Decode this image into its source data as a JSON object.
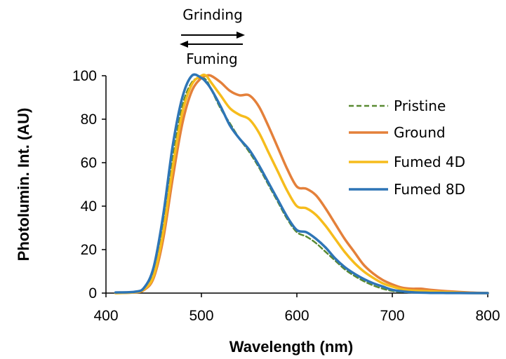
{
  "chart_data": {
    "type": "line",
    "title": "",
    "xlabel": "Wavelength  (nm)",
    "ylabel": "Photolumin. Int. (AU)",
    "xlim": [
      400,
      800
    ],
    "ylim": [
      0,
      100
    ],
    "x_ticks": [
      "400",
      "500",
      "600",
      "700",
      "800"
    ],
    "y_ticks": [
      "0",
      "20",
      "40",
      "60",
      "80",
      "100"
    ],
    "grid": false,
    "legend_position": "right",
    "annotations": {
      "top": "Grinding",
      "top_arrow": "right",
      "bottom": "Fuming",
      "bottom_arrow": "left"
    },
    "series": [
      {
        "name": "Pristine",
        "color": "#5a8a32",
        "dash": "dashed",
        "x": [
          410,
          430,
          440,
          450,
          460,
          470,
          480,
          490,
          500,
          505,
          510,
          520,
          530,
          540,
          550,
          560,
          570,
          580,
          590,
          600,
          610,
          620,
          630,
          640,
          650,
          660,
          670,
          680,
          690,
          700,
          710,
          720,
          730,
          740,
          760,
          780,
          800
        ],
        "y": [
          0,
          0.5,
          2,
          10,
          32,
          62,
          86,
          97,
          99,
          98,
          94,
          85,
          78,
          71,
          65,
          58,
          50,
          42,
          34,
          28,
          26,
          23,
          19,
          15,
          11,
          8,
          5.5,
          3.5,
          2,
          1,
          0.5,
          0.3,
          0.2,
          0.1,
          0.05,
          0,
          0
        ]
      },
      {
        "name": "Ground",
        "color": "#e4803a",
        "dash": "solid",
        "x": [
          410,
          430,
          440,
          450,
          460,
          470,
          480,
          490,
          500,
          505,
          510,
          520,
          530,
          540,
          550,
          560,
          570,
          580,
          590,
          600,
          610,
          620,
          630,
          640,
          650,
          660,
          670,
          680,
          690,
          700,
          710,
          720,
          730,
          740,
          760,
          780,
          800
        ],
        "y": [
          0,
          0.3,
          1.5,
          7,
          25,
          53,
          78,
          93,
          99,
          100,
          100,
          97,
          93,
          91,
          91,
          86,
          77,
          67,
          57,
          49,
          48,
          45,
          39,
          32,
          25,
          19,
          13,
          9,
          6,
          4,
          2.5,
          2,
          2,
          1.5,
          0.8,
          0.3,
          0
        ]
      },
      {
        "name": "Fumed 4D",
        "color": "#f6bc1c",
        "dash": "solid",
        "x": [
          410,
          430,
          440,
          450,
          460,
          470,
          480,
          490,
          500,
          505,
          510,
          520,
          530,
          540,
          550,
          560,
          570,
          580,
          590,
          600,
          610,
          620,
          630,
          640,
          650,
          660,
          670,
          680,
          690,
          700,
          710,
          720,
          730,
          740,
          760,
          780,
          800
        ],
        "y": [
          0,
          0.4,
          1.8,
          8,
          28,
          58,
          83,
          96,
          100,
          100,
          97,
          91,
          85,
          82,
          80,
          74,
          65,
          56,
          47,
          40,
          39,
          36,
          31,
          25,
          19,
          14,
          10,
          7,
          4.5,
          3,
          1.8,
          1.2,
          1,
          0.8,
          0.4,
          0.1,
          0
        ]
      },
      {
        "name": "Fumed 8D",
        "color": "#2e75b6",
        "dash": "solid",
        "x": [
          410,
          430,
          440,
          450,
          460,
          470,
          480,
          490,
          500,
          505,
          510,
          520,
          530,
          540,
          550,
          560,
          570,
          580,
          590,
          600,
          610,
          620,
          630,
          640,
          650,
          660,
          670,
          680,
          690,
          700,
          710,
          720,
          730,
          740,
          760,
          780,
          800
        ],
        "y": [
          0.3,
          0.6,
          2.5,
          12,
          36,
          68,
          90,
          100,
          99,
          97,
          94,
          86,
          77,
          71,
          66,
          59,
          51,
          43,
          35,
          29,
          28,
          25,
          21,
          16,
          12,
          9,
          6.5,
          4.5,
          3,
          1.5,
          0.8,
          0.4,
          0.2,
          0.1,
          0.05,
          0,
          0
        ]
      }
    ]
  }
}
